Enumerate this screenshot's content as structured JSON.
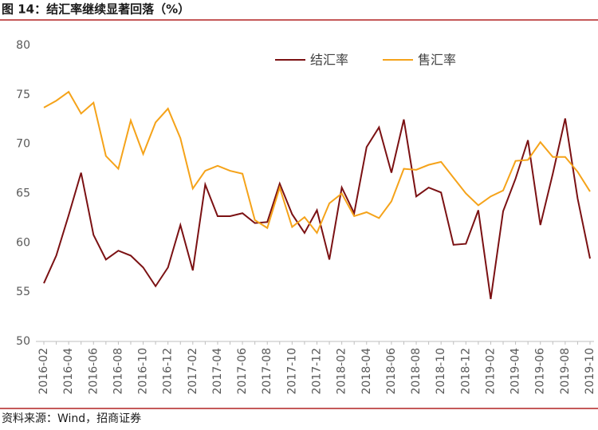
{
  "chart_data": {
    "type": "line",
    "title": "图 14：结汇率继续显著回落（%）",
    "source": "资料来源：Wind，招商证券",
    "categories": [
      "2016-02",
      null,
      "2016-04",
      null,
      "2016-06",
      null,
      "2016-08",
      null,
      "2016-10",
      null,
      "2016-12",
      null,
      "2017-02",
      null,
      "2017-04",
      null,
      "2017-06",
      null,
      "2017-08",
      null,
      "2017-10",
      null,
      "2017-12",
      null,
      "2018-02",
      null,
      "2018-04",
      null,
      "2018-06",
      null,
      "2018-08",
      null,
      "2018-10",
      null,
      "2018-12",
      null,
      "2019-02",
      null,
      "2019-04",
      null,
      "2019-06",
      null,
      "2019-08",
      null,
      "2019-10"
    ],
    "series": [
      {
        "name": "结汇率",
        "color": "#7b1113",
        "values": [
          55.9,
          58.7,
          62.8,
          67.1,
          60.8,
          58.3,
          59.2,
          58.7,
          57.5,
          55.6,
          57.5,
          61.8,
          57.2,
          65.9,
          62.7,
          62.7,
          63.0,
          62.0,
          62.1,
          66.0,
          62.9,
          61.0,
          63.3,
          58.3,
          65.6,
          63.0,
          69.7,
          71.7,
          67.1,
          72.5,
          64.7,
          65.6,
          65.1,
          59.8,
          59.9,
          63.3,
          54.3,
          63.2,
          66.5,
          70.4,
          61.8,
          67.0,
          72.6,
          64.5,
          58.4
        ]
      },
      {
        "name": "售汇率",
        "color": "#f5a31a",
        "values": [
          73.7,
          74.4,
          75.3,
          73.1,
          74.2,
          68.8,
          67.5,
          72.4,
          69.0,
          72.2,
          73.6,
          70.6,
          65.5,
          67.3,
          67.8,
          67.3,
          67.0,
          62.3,
          61.5,
          65.6,
          61.6,
          62.6,
          61.0,
          64.0,
          65.0,
          62.7,
          63.1,
          62.5,
          64.2,
          67.5,
          67.4,
          67.9,
          68.2,
          66.6,
          65.0,
          63.8,
          64.7,
          65.3,
          68.3,
          68.4,
          70.2,
          68.7,
          68.7,
          67.2,
          65.2
        ]
      }
    ],
    "ylim": [
      50,
      80
    ],
    "yticks": [
      50,
      55,
      60,
      65,
      70,
      75,
      80
    ],
    "grid": false,
    "legend": "top"
  }
}
